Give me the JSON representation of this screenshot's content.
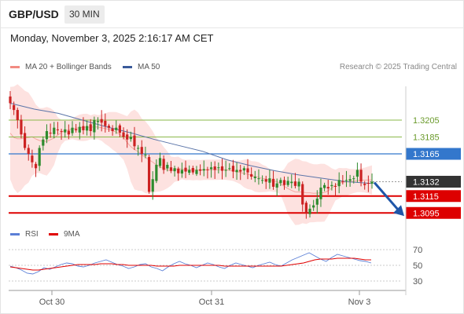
{
  "header": {
    "symbol": "GBP/USD",
    "timeframe": "30 MIN",
    "timestamp": "Monday, November 3, 2025 2:16:17 AM CET"
  },
  "legend": {
    "ma20": {
      "label": "MA 20 + Bollinger Bands",
      "color": "#f28b82"
    },
    "ma50": {
      "label": "MA 50",
      "color": "#3a5a9a"
    },
    "credit": "Research © 2025 Trading Central"
  },
  "rsi_legend": {
    "rsi": {
      "label": "RSI",
      "color": "#5b7fd6"
    },
    "ma9": {
      "label": "9MA",
      "color": "#e00000"
    }
  },
  "colors": {
    "bullish": "#2e8b2e",
    "bearish": "#cc2222",
    "support": "#dd0000",
    "resistance": "#3377cc",
    "target_green": "#8ab84a",
    "arrow": "#1f56a8"
  },
  "chart_data": [
    {
      "type": "candlestick",
      "ylim": [
        1.3085,
        1.3245
      ],
      "x_ticks": [
        "Oct 30",
        "Oct 31",
        "Nov 3"
      ],
      "levels": [
        {
          "label": "1.3205",
          "value": 1.3205,
          "kind": "target"
        },
        {
          "label": "1.3185",
          "value": 1.3185,
          "kind": "target"
        },
        {
          "label": "1.3165",
          "value": 1.3165,
          "kind": "resistance"
        },
        {
          "label": "1.3132",
          "value": 1.3132,
          "kind": "last"
        },
        {
          "label": "1.3115",
          "value": 1.3115,
          "kind": "support"
        },
        {
          "label": "1.3095",
          "value": 1.3095,
          "kind": "support"
        }
      ],
      "projection": {
        "from": 1.3132,
        "to": 1.3095,
        "direction": "down"
      },
      "close_path": [
        1.3225,
        1.3217,
        1.3205,
        1.3188,
        1.3172,
        1.3165,
        1.3155,
        1.3148,
        1.3172,
        1.3182,
        1.3192,
        1.319,
        1.3196,
        1.3193,
        1.3192,
        1.3194,
        1.3188,
        1.3196,
        1.3193,
        1.3197,
        1.3193,
        1.3198,
        1.3192,
        1.3205,
        1.3204,
        1.3202,
        1.3198,
        1.3196,
        1.3192,
        1.3196,
        1.319,
        1.3185,
        1.3182,
        1.3185,
        1.3174,
        1.3172,
        1.3165,
        1.3164,
        1.312,
        1.3135,
        1.3152,
        1.316,
        1.3146,
        1.3152,
        1.3145,
        1.3148,
        1.3142,
        1.3146,
        1.3144,
        1.3146,
        1.3143,
        1.3146,
        1.3145,
        1.3147,
        1.3146,
        1.3149,
        1.3146,
        1.3149,
        1.3145,
        1.3146,
        1.3148,
        1.3144,
        1.3146,
        1.3144,
        1.3148,
        1.3143,
        1.3138,
        1.3138,
        1.3136,
        1.3134,
        1.3132,
        1.3136,
        1.3126,
        1.313,
        1.3134,
        1.3128,
        1.3133,
        1.3132,
        1.3127,
        1.3132,
        1.3105,
        1.3095,
        1.31,
        1.3104,
        1.3112,
        1.3125,
        1.3128,
        1.3124,
        1.3128,
        1.3126,
        1.3134,
        1.3132,
        1.3134,
        1.3135,
        1.3136,
        1.3146,
        1.3132,
        1.3128,
        1.313,
        1.3132
      ],
      "ma50": [
        1.3225,
        1.3218,
        1.3213,
        1.3205,
        1.3197,
        1.319,
        1.3182,
        1.3175,
        1.3168,
        1.3158,
        1.3151,
        1.3145,
        1.314,
        1.3136,
        1.3132,
        1.313
      ],
      "ma50_span": [
        0,
        99
      ]
    },
    {
      "type": "line",
      "title": "RSI",
      "ylim": [
        20,
        80
      ],
      "y_ticks": [
        "70",
        "50",
        "30"
      ],
      "series": [
        {
          "name": "RSI",
          "values": [
            49,
            47,
            44,
            40,
            39,
            42,
            47,
            45,
            48,
            51,
            53,
            52,
            49,
            48,
            50,
            53,
            55,
            57,
            54,
            51,
            49,
            46,
            48,
            51,
            52,
            48,
            46,
            43,
            48,
            52,
            55,
            52,
            50,
            47,
            50,
            53,
            51,
            48,
            46,
            50,
            53,
            51,
            49,
            47,
            50,
            52,
            54,
            51,
            49,
            53,
            57,
            60,
            63,
            66,
            62,
            58,
            55,
            60,
            64,
            62,
            60,
            58,
            56,
            55,
            53
          ]
        },
        {
          "name": "9MA",
          "values": [
            48,
            47,
            46,
            45,
            44,
            44,
            45,
            46,
            47,
            48,
            49,
            50,
            51,
            51,
            51,
            51,
            52,
            52,
            52,
            51,
            51,
            50,
            50,
            50,
            50,
            50,
            49,
            49,
            49,
            49,
            50,
            50,
            50,
            50,
            50,
            50,
            50,
            50,
            49,
            49,
            49,
            49,
            49,
            49,
            49,
            49,
            49,
            49,
            49,
            50,
            51,
            52,
            53,
            55,
            57,
            58,
            58,
            58,
            59,
            59,
            59,
            59,
            58,
            57,
            57
          ]
        }
      ]
    }
  ]
}
